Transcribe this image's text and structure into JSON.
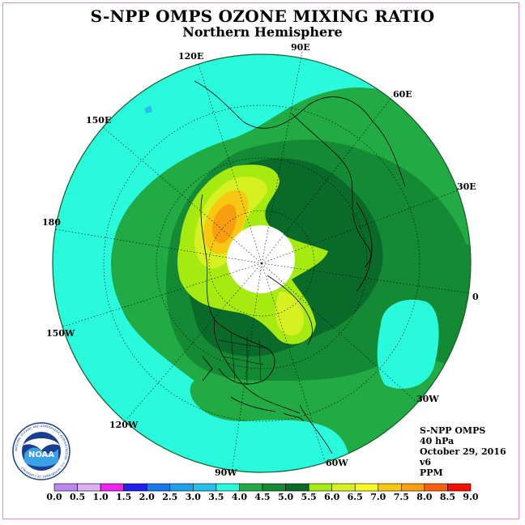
{
  "title": "S-NPP OMPS OZONE MIXING RATIO",
  "subtitle": "Northern Hemisphere",
  "longitude_labels": {
    "lon_90e": "90E",
    "lon_60e": "60E",
    "lon_30e": "30E",
    "lon_0": "0",
    "lon_30w": "30W",
    "lon_60w": "60W",
    "lon_90w": "90W",
    "lon_120w": "120W",
    "lon_150w": "150W",
    "lon_180": "180",
    "lon_150e": "150E",
    "lon_120e": "120E"
  },
  "info": {
    "instrument": "S-NPP OMPS",
    "level": "40 hPa",
    "date": "October 29, 2016",
    "version": "v6",
    "units": "PPM"
  },
  "logo": {
    "text": "NOAA",
    "ring_text": "NATIONAL OCEANIC AND ATMOSPHERIC ADMINISTRATION · U.S. DEPARTMENT OF COMMERCE"
  },
  "colorbar": {
    "ticks": [
      "0.0",
      "0.5",
      "1.0",
      "1.5",
      "2.0",
      "2.5",
      "3.0",
      "3.5",
      "4.0",
      "4.5",
      "5.0",
      "5.5",
      "6.0",
      "6.5",
      "7.0",
      "7.5",
      "8.0",
      "8.5",
      "9.0"
    ],
    "colors": [
      "#bb88f2",
      "#dcb0f0",
      "#ee22ee",
      "#2020ee",
      "#1878ea",
      "#1ea0ea",
      "#26c0ea",
      "#2afadc",
      "#22aa44",
      "#148a34",
      "#0a6a2a",
      "#a6ea10",
      "#d6f020",
      "#f8f820",
      "#f8c810",
      "#f89e10",
      "#f86010",
      "#f41000",
      "#8b5c40"
    ]
  },
  "colors": {
    "ocean_low": "#2afadc",
    "mid": "#148a34",
    "dark": "#0a6a2a",
    "green": "#22aa44",
    "lime": "#a6ea10",
    "yellow": "#d6f020",
    "orange": "#f8c810",
    "red_orange": "#f89e10",
    "polar_night": "#ffffff"
  }
}
